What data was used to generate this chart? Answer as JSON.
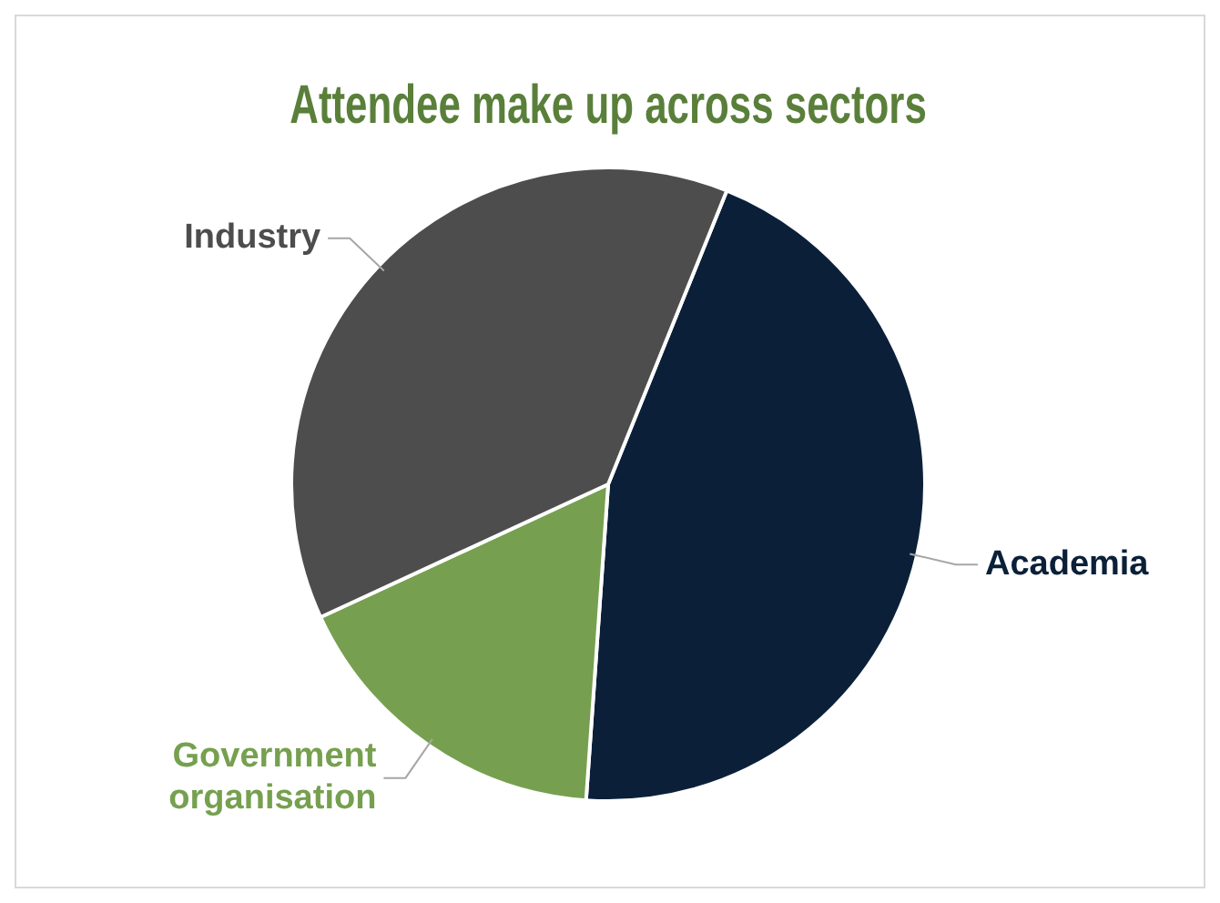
{
  "chart_data": {
    "type": "pie",
    "title": "Attendee make up across sectors",
    "categories": [
      "Academia",
      "Government organisation",
      "Industry"
    ],
    "values": [
      45,
      17,
      38
    ],
    "colors": [
      "#0b2038",
      "#76a04f",
      "#4d4d4d"
    ],
    "legend": false
  }
}
